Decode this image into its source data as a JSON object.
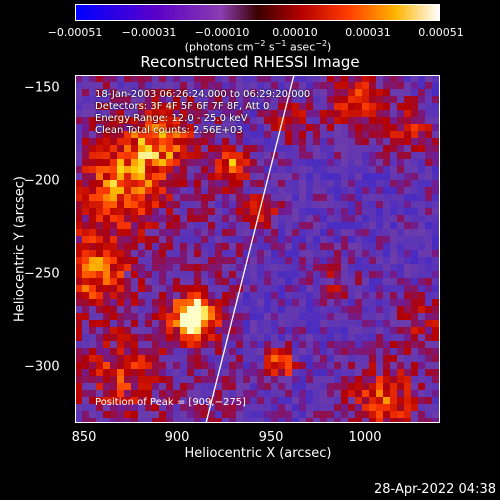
{
  "chart_data": {
    "type": "heatmap",
    "title": "Reconstructed RHESSI Image",
    "xlabel": "Heliocentric X (arcsec)",
    "ylabel": "Heliocentric Y (arcsec)",
    "xlim": [
      845,
      1040
    ],
    "ylim": [
      -332,
      -145
    ],
    "x_ticks": [
      "850",
      "900",
      "950",
      "1000"
    ],
    "y_ticks": [
      "−150",
      "−200",
      "−250",
      "−300"
    ],
    "colorbar": {
      "ticks": [
        "−0.00051",
        "−0.00031",
        "−0.00010",
        "0.00010",
        "0.00031",
        "0.00051"
      ],
      "unit_parts": [
        "(photons cm",
        "−2",
        " s",
        "−1",
        " asec",
        "−2",
        ")"
      ],
      "range": [
        -0.00051,
        0.00051
      ]
    },
    "info_lines": [
      "18-Jan-2003 06:26:24.000 to 06:29:20.000",
      "Detectors: 3F 4F 5F 6F 7F 8F, Att 0",
      "Energy Range: 12.0 - 25.0 keV",
      "Clean    Total counts: 2.56E+03"
    ],
    "peak_label": "Position of Peak = [909,−275]",
    "peak_position": [
      909,
      -275
    ],
    "limb_line": [
      [
        915,
        -332
      ],
      [
        962,
        -145
      ]
    ]
  },
  "timestamp": "28-Apr-2022 04:38"
}
